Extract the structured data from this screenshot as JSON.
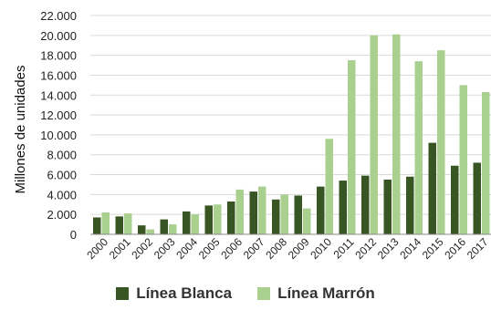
{
  "chart_data": {
    "type": "bar",
    "ylabel": "Millones de unidades",
    "ylim": [
      0,
      22000
    ],
    "yticks": [
      0,
      2000,
      4000,
      6000,
      8000,
      10000,
      12000,
      14000,
      16000,
      18000,
      20000,
      22000
    ],
    "ytick_labels": [
      "0",
      "2.000",
      "4.000",
      "6.000",
      "8.000",
      "10.000",
      "12.000",
      "14.000",
      "16.000",
      "18.000",
      "20.000",
      "22.000"
    ],
    "categories": [
      "2000",
      "2001",
      "2002",
      "2003",
      "2004",
      "2005",
      "2006",
      "2007",
      "2008",
      "2009",
      "2010",
      "2011",
      "2012",
      "2013",
      "2014",
      "2015",
      "2016",
      "2017"
    ],
    "series": [
      {
        "name": "Línea Blanca",
        "color": "#375623",
        "values": [
          1700,
          1800,
          900,
          1500,
          2300,
          2900,
          3300,
          4300,
          3500,
          3900,
          4800,
          5400,
          5900,
          5500,
          5800,
          9200,
          6900,
          7200
        ]
      },
      {
        "name": "Línea Marrón",
        "color": "#a9d08e",
        "values": [
          2200,
          2100,
          500,
          1000,
          2000,
          3000,
          4500,
          4800,
          4000,
          2600,
          9600,
          17500,
          20000,
          20100,
          17400,
          18500,
          15000,
          14300
        ]
      }
    ],
    "grid": true,
    "legend": "bottom"
  }
}
